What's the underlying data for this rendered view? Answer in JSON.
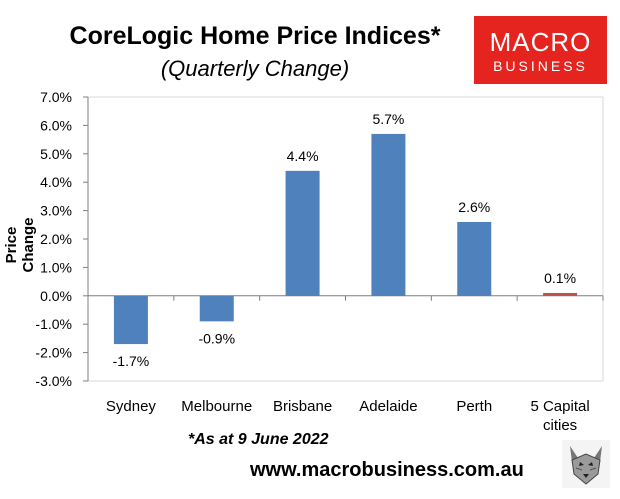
{
  "header": {
    "title": "CoreLogic Home Price Indices*",
    "subtitle": "(Quarterly Change)"
  },
  "logo": {
    "line1": "MACRO",
    "line2": "BUSINESS",
    "color": "#e5231f"
  },
  "footer": {
    "note": "*As at 9 June 2022",
    "url": "www.macrobusiness.com.au"
  },
  "chart_data": {
    "type": "bar",
    "title": "CoreLogic Home Price Indices*",
    "subtitle": "(Quarterly Change)",
    "ylabel": "Price Change",
    "categories": [
      "Sydney",
      "Melbourne",
      "Brisbane",
      "Adelaide",
      "Perth",
      "5 Capital cities"
    ],
    "values": [
      -1.7,
      -0.9,
      4.4,
      5.7,
      2.6,
      0.1
    ],
    "data_labels": [
      "-1.7%",
      "-0.9%",
      "4.4%",
      "5.7%",
      "2.6%",
      "0.1%"
    ],
    "ylim": [
      -3,
      7
    ],
    "yticks": [
      "-3.0%",
      "-2.0%",
      "-1.0%",
      "0.0%",
      "1.0%",
      "2.0%",
      "3.0%",
      "4.0%",
      "5.0%",
      "6.0%",
      "7.0%"
    ],
    "bar_colors": [
      "#4f81bd",
      "#4f81bd",
      "#4f81bd",
      "#4f81bd",
      "#4f81bd",
      "#c0504d"
    ],
    "grid": false
  }
}
